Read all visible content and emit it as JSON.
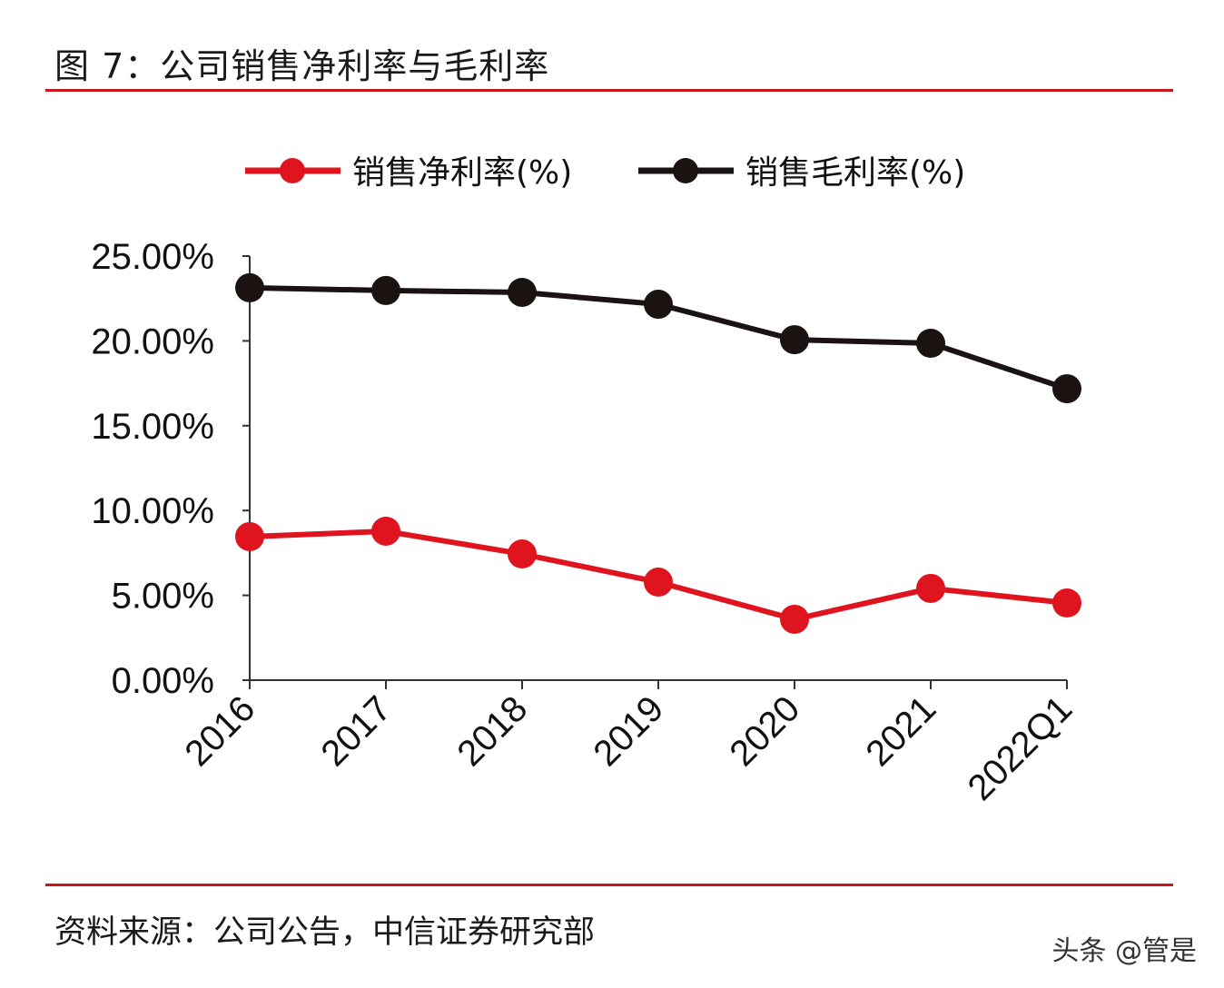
{
  "title": "图 7：公司销售净利率与毛利率",
  "source": "资料来源：公司公告，中信证券研究部",
  "watermark": "头条 @管是",
  "chart_data": {
    "type": "line",
    "categories": [
      "2016",
      "2017",
      "2018",
      "2019",
      "2020",
      "2021",
      "2022Q1"
    ],
    "series": [
      {
        "name": "销售净利率(%)",
        "color": "#e0141e",
        "values": [
          8.46,
          8.78,
          7.44,
          5.78,
          3.59,
          5.41,
          4.55
        ]
      },
      {
        "name": "销售毛利率(%)",
        "color": "#1a1311",
        "values": [
          23.13,
          22.97,
          22.86,
          22.16,
          20.07,
          19.86,
          17.18
        ]
      }
    ],
    "ylim": [
      0,
      25
    ],
    "yticks": [
      "0.00%",
      "5.00%",
      "10.00%",
      "15.00%",
      "20.00%",
      "25.00%"
    ],
    "grid": false,
    "legend": "top"
  }
}
